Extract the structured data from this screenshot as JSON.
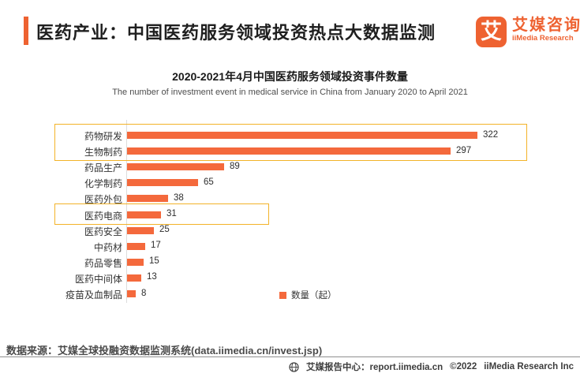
{
  "header": {
    "title": "医药产业：中国医药服务领域投资热点大数据监测",
    "logo": {
      "mark_glyph": "艾",
      "brand_cn": "艾媒咨询",
      "brand_en": "iiMedia Research"
    }
  },
  "chart_data": {
    "type": "bar",
    "orientation": "horizontal",
    "title": "2020-2021年4月中国医药服务领域投资事件数量",
    "subtitle": "The number of investment event in medical service in China from January 2020 to April 2021",
    "categories": [
      "药物研发",
      "生物制药",
      "药品生产",
      "化学制药",
      "医药外包",
      "医药电商",
      "医药安全",
      "中药材",
      "药品零售",
      "医药中间体",
      "疫苗及血制品"
    ],
    "values": [
      322,
      297,
      89,
      65,
      38,
      31,
      25,
      17,
      15,
      13,
      8
    ],
    "series_name": "数量（起）",
    "xlim": [
      0,
      365
    ],
    "grid": false,
    "legend_position": "bottom-center",
    "highlighted_categories": [
      "药物研发",
      "生物制药",
      "医药电商"
    ]
  },
  "footer": {
    "source": "数据来源：艾媒全球投融资数据监测系统(data.iimedia.cn/invest.jsp)",
    "report_center": "艾媒报告中心：report.iimedia.cn",
    "copyright": "©2022",
    "company": "iiMedia Research Inc"
  },
  "colors": {
    "bar": "#f4693c",
    "accent": "#ee6231",
    "highlight_border": "#f3b329"
  }
}
